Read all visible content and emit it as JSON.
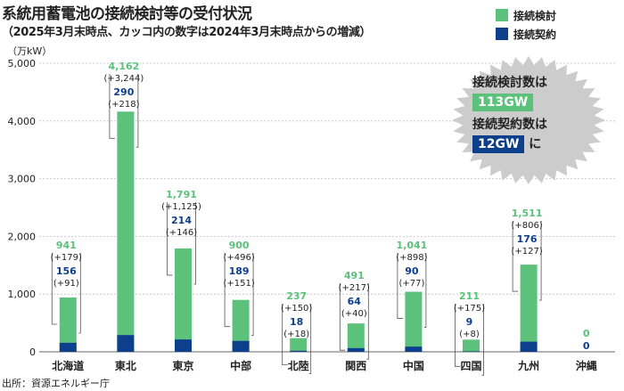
{
  "title": "系統用蓄電池の接続検討等の受付状況",
  "subtitle": "（2025年3月末時点、カッコ内の数字は2024年3月末時点からの増減）",
  "source": "出所：資源エネルギー庁",
  "colors": {
    "green": "#5cc17a",
    "navy": "#0e3f8c",
    "grid": "#bfbfbf",
    "burst": "#cccccc"
  },
  "callout": {
    "line1": "接続検討数は",
    "value1": "113GW",
    "line2": "接続契約数は",
    "value2": "12GW",
    "suffix": "に"
  },
  "chart_data": {
    "type": "bar",
    "stacked": true,
    "unit": "（万kW）",
    "categories": [
      "北海道",
      "東北",
      "東京",
      "中部",
      "北陸",
      "関西",
      "中国",
      "四国",
      "九州",
      "沖縄"
    ],
    "series": [
      {
        "name": "接続検討",
        "color": "#5cc17a",
        "values": [
          941,
          4162,
          1791,
          900,
          237,
          491,
          1041,
          211,
          1511,
          0
        ],
        "labels": [
          "941",
          "4,162",
          "1,791",
          "900",
          "237",
          "491",
          "1,041",
          "211",
          "1,511",
          "0"
        ],
        "changes": [
          "(+179)",
          "(+3,244)",
          "(+1,125)",
          "(+496)",
          "(+150)",
          "(+217)",
          "(+898)",
          "(+175)",
          "(+806)",
          ""
        ]
      },
      {
        "name": "接続契約",
        "color": "#0e3f8c",
        "values": [
          156,
          290,
          214,
          189,
          18,
          64,
          90,
          9,
          176,
          0
        ],
        "labels": [
          "156",
          "290",
          "214",
          "189",
          "18",
          "64",
          "90",
          "9",
          "176",
          "0"
        ],
        "changes": [
          "(+91)",
          "(+218)",
          "(+146)",
          "(+151)",
          "(+18)",
          "(+40)",
          "(+77)",
          "(+8)",
          "(+127)",
          ""
        ]
      }
    ],
    "ylim": [
      0,
      5000
    ],
    "yticks": [
      0,
      1000,
      2000,
      3000,
      4000,
      5000
    ],
    "ytick_labels": [
      "0",
      "1,000",
      "2,000",
      "3,000",
      "4,000",
      "5,000"
    ],
    "grid": true,
    "legend": "top-right"
  }
}
